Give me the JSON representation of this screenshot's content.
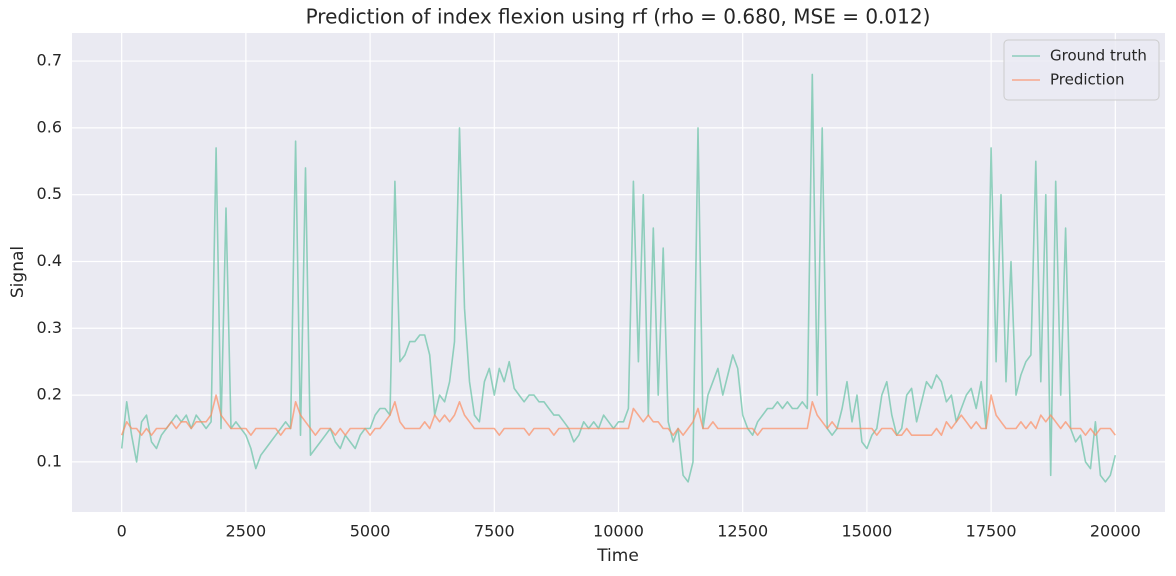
{
  "chart_data": {
    "type": "line",
    "title": "Prediction of index flexion using rf (rho = 0.680, MSE = 0.012)",
    "x_label": "Time",
    "y_label": "Signal",
    "x": [
      0,
      100,
      200,
      300,
      400,
      500,
      600,
      700,
      800,
      900,
      1000,
      1100,
      1200,
      1300,
      1400,
      1500,
      1600,
      1700,
      1800,
      1900,
      2000,
      2100,
      2200,
      2300,
      2400,
      2500,
      2600,
      2700,
      2800,
      2900,
      3000,
      3100,
      3200,
      3300,
      3400,
      3500,
      3600,
      3700,
      3800,
      3900,
      4000,
      4100,
      4200,
      4300,
      4400,
      4500,
      4600,
      4700,
      4800,
      4900,
      5000,
      5100,
      5200,
      5300,
      5400,
      5500,
      5600,
      5700,
      5800,
      5900,
      6000,
      6100,
      6200,
      6300,
      6400,
      6500,
      6600,
      6700,
      6800,
      6900,
      7000,
      7100,
      7200,
      7300,
      7400,
      7500,
      7600,
      7700,
      7800,
      7900,
      8000,
      8100,
      8200,
      8300,
      8400,
      8500,
      8600,
      8700,
      8800,
      8900,
      9000,
      9100,
      9200,
      9300,
      9400,
      9500,
      9600,
      9700,
      9800,
      9900,
      10000,
      10100,
      10200,
      10300,
      10400,
      10500,
      10600,
      10700,
      10800,
      10900,
      11000,
      11100,
      11200,
      11300,
      11400,
      11500,
      11600,
      11700,
      11800,
      11900,
      12000,
      12100,
      12200,
      12300,
      12400,
      12500,
      12600,
      12700,
      12800,
      12900,
      13000,
      13100,
      13200,
      13300,
      13400,
      13500,
      13600,
      13700,
      13800,
      13900,
      14000,
      14100,
      14200,
      14300,
      14400,
      14500,
      14600,
      14700,
      14800,
      14900,
      15000,
      15100,
      15200,
      15300,
      15400,
      15500,
      15600,
      15700,
      15800,
      15900,
      16000,
      16100,
      16200,
      16300,
      16400,
      16500,
      16600,
      16700,
      16800,
      16900,
      17000,
      17100,
      17200,
      17300,
      17400,
      17500,
      17600,
      17700,
      17800,
      17900,
      18000,
      18100,
      18200,
      18300,
      18400,
      18500,
      18600,
      18700,
      18800,
      18900,
      19000,
      19100,
      19200,
      19300,
      19400,
      19500,
      19600,
      19700,
      19800,
      19900,
      20000
    ],
    "series": [
      {
        "name": "Ground truth",
        "color": "#66c2a5",
        "values": [
          0.12,
          0.19,
          0.14,
          0.1,
          0.16,
          0.17,
          0.13,
          0.12,
          0.14,
          0.15,
          0.16,
          0.17,
          0.16,
          0.17,
          0.15,
          0.17,
          0.16,
          0.15,
          0.16,
          0.57,
          0.15,
          0.48,
          0.15,
          0.16,
          0.15,
          0.14,
          0.12,
          0.09,
          0.11,
          0.12,
          0.13,
          0.14,
          0.15,
          0.16,
          0.15,
          0.58,
          0.14,
          0.54,
          0.11,
          0.12,
          0.13,
          0.14,
          0.15,
          0.13,
          0.12,
          0.14,
          0.13,
          0.12,
          0.14,
          0.15,
          0.15,
          0.17,
          0.18,
          0.18,
          0.17,
          0.52,
          0.25,
          0.26,
          0.28,
          0.28,
          0.29,
          0.29,
          0.26,
          0.17,
          0.2,
          0.19,
          0.22,
          0.28,
          0.6,
          0.33,
          0.22,
          0.17,
          0.16,
          0.22,
          0.24,
          0.2,
          0.24,
          0.22,
          0.25,
          0.21,
          0.2,
          0.19,
          0.2,
          0.2,
          0.19,
          0.19,
          0.18,
          0.17,
          0.17,
          0.16,
          0.15,
          0.13,
          0.14,
          0.16,
          0.15,
          0.16,
          0.15,
          0.17,
          0.16,
          0.15,
          0.16,
          0.16,
          0.18,
          0.52,
          0.25,
          0.5,
          0.17,
          0.45,
          0.2,
          0.42,
          0.16,
          0.13,
          0.15,
          0.08,
          0.07,
          0.1,
          0.6,
          0.15,
          0.2,
          0.22,
          0.24,
          0.2,
          0.23,
          0.26,
          0.24,
          0.17,
          0.15,
          0.14,
          0.16,
          0.17,
          0.18,
          0.18,
          0.19,
          0.18,
          0.19,
          0.18,
          0.18,
          0.19,
          0.18,
          0.68,
          0.2,
          0.6,
          0.15,
          0.14,
          0.15,
          0.18,
          0.22,
          0.16,
          0.2,
          0.13,
          0.12,
          0.14,
          0.15,
          0.2,
          0.22,
          0.17,
          0.14,
          0.15,
          0.2,
          0.21,
          0.16,
          0.19,
          0.22,
          0.21,
          0.23,
          0.22,
          0.19,
          0.2,
          0.16,
          0.18,
          0.2,
          0.21,
          0.18,
          0.22,
          0.15,
          0.57,
          0.25,
          0.5,
          0.22,
          0.4,
          0.2,
          0.23,
          0.25,
          0.26,
          0.55,
          0.22,
          0.5,
          0.08,
          0.52,
          0.2,
          0.45,
          0.15,
          0.13,
          0.14,
          0.1,
          0.09,
          0.16,
          0.08,
          0.07,
          0.08,
          0.11
        ]
      },
      {
        "name": "Prediction",
        "color": "#fc8d62",
        "values": [
          0.14,
          0.16,
          0.15,
          0.15,
          0.14,
          0.15,
          0.14,
          0.15,
          0.15,
          0.15,
          0.16,
          0.15,
          0.16,
          0.16,
          0.15,
          0.16,
          0.16,
          0.16,
          0.17,
          0.2,
          0.17,
          0.16,
          0.15,
          0.15,
          0.15,
          0.15,
          0.14,
          0.15,
          0.15,
          0.15,
          0.15,
          0.15,
          0.14,
          0.15,
          0.15,
          0.19,
          0.17,
          0.16,
          0.15,
          0.14,
          0.15,
          0.15,
          0.15,
          0.14,
          0.15,
          0.14,
          0.15,
          0.15,
          0.15,
          0.15,
          0.14,
          0.15,
          0.15,
          0.16,
          0.17,
          0.19,
          0.16,
          0.15,
          0.15,
          0.15,
          0.15,
          0.16,
          0.15,
          0.17,
          0.16,
          0.17,
          0.16,
          0.17,
          0.19,
          0.17,
          0.16,
          0.15,
          0.15,
          0.15,
          0.15,
          0.15,
          0.14,
          0.15,
          0.15,
          0.15,
          0.15,
          0.15,
          0.14,
          0.15,
          0.15,
          0.15,
          0.15,
          0.14,
          0.15,
          0.15,
          0.15,
          0.15,
          0.15,
          0.15,
          0.15,
          0.15,
          0.15,
          0.15,
          0.15,
          0.15,
          0.15,
          0.15,
          0.15,
          0.18,
          0.17,
          0.16,
          0.17,
          0.16,
          0.16,
          0.15,
          0.15,
          0.14,
          0.15,
          0.14,
          0.15,
          0.16,
          0.18,
          0.15,
          0.15,
          0.16,
          0.15,
          0.15,
          0.15,
          0.15,
          0.15,
          0.15,
          0.15,
          0.15,
          0.14,
          0.15,
          0.15,
          0.15,
          0.15,
          0.15,
          0.15,
          0.15,
          0.15,
          0.15,
          0.15,
          0.19,
          0.17,
          0.16,
          0.15,
          0.16,
          0.15,
          0.15,
          0.15,
          0.15,
          0.15,
          0.15,
          0.15,
          0.15,
          0.14,
          0.15,
          0.15,
          0.15,
          0.14,
          0.14,
          0.15,
          0.14,
          0.14,
          0.14,
          0.14,
          0.14,
          0.15,
          0.14,
          0.16,
          0.15,
          0.16,
          0.17,
          0.16,
          0.15,
          0.16,
          0.15,
          0.15,
          0.2,
          0.17,
          0.16,
          0.15,
          0.15,
          0.15,
          0.16,
          0.15,
          0.16,
          0.15,
          0.17,
          0.16,
          0.17,
          0.16,
          0.15,
          0.16,
          0.15,
          0.15,
          0.15,
          0.14,
          0.15,
          0.14,
          0.15,
          0.15,
          0.15,
          0.14
        ]
      }
    ],
    "xlim": [
      -1000,
      21000
    ],
    "ylim": [
      0.025,
      0.742
    ],
    "xticks": [
      0,
      2500,
      5000,
      7500,
      10000,
      12500,
      15000,
      17500,
      20000
    ],
    "yticks": [
      0.1,
      0.2,
      0.3,
      0.4,
      0.5,
      0.6,
      0.7
    ],
    "grid": true,
    "legend": "upper right"
  }
}
